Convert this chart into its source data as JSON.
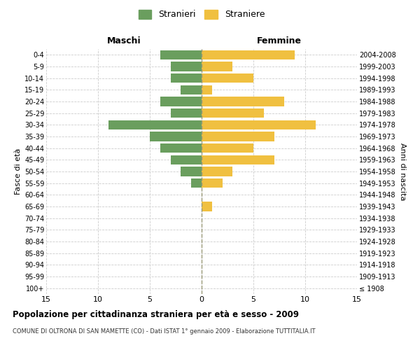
{
  "age_groups": [
    "100+",
    "95-99",
    "90-94",
    "85-89",
    "80-84",
    "75-79",
    "70-74",
    "65-69",
    "60-64",
    "55-59",
    "50-54",
    "45-49",
    "40-44",
    "35-39",
    "30-34",
    "25-29",
    "20-24",
    "15-19",
    "10-14",
    "5-9",
    "0-4"
  ],
  "birth_years": [
    "≤ 1908",
    "1909-1913",
    "1914-1918",
    "1919-1923",
    "1924-1928",
    "1929-1933",
    "1934-1938",
    "1939-1943",
    "1944-1948",
    "1949-1953",
    "1954-1958",
    "1959-1963",
    "1964-1968",
    "1969-1973",
    "1974-1978",
    "1979-1983",
    "1984-1988",
    "1989-1993",
    "1994-1998",
    "1999-2003",
    "2004-2008"
  ],
  "males": [
    0,
    0,
    0,
    0,
    0,
    0,
    0,
    0,
    0,
    1,
    2,
    3,
    4,
    5,
    9,
    3,
    4,
    2,
    3,
    3,
    4
  ],
  "females": [
    0,
    0,
    0,
    0,
    0,
    0,
    0,
    1,
    0,
    2,
    3,
    7,
    5,
    7,
    11,
    6,
    8,
    1,
    5,
    3,
    9
  ],
  "male_color": "#6a9e5e",
  "female_color": "#f0c040",
  "background_color": "#ffffff",
  "grid_color": "#cccccc",
  "title": "Popolazione per cittadinanza straniera per età e sesso - 2009",
  "subtitle": "COMUNE DI OLTRONA DI SAN MAMETTE (CO) - Dati ISTAT 1° gennaio 2009 - Elaborazione TUTTITALIA.IT",
  "header_left": "Maschi",
  "header_right": "Femmine",
  "ylabel_left": "Fasce di età",
  "ylabel_right": "Anni di nascita",
  "legend_male": "Stranieri",
  "legend_female": "Straniere",
  "xlim": 15,
  "bar_height": 0.8
}
